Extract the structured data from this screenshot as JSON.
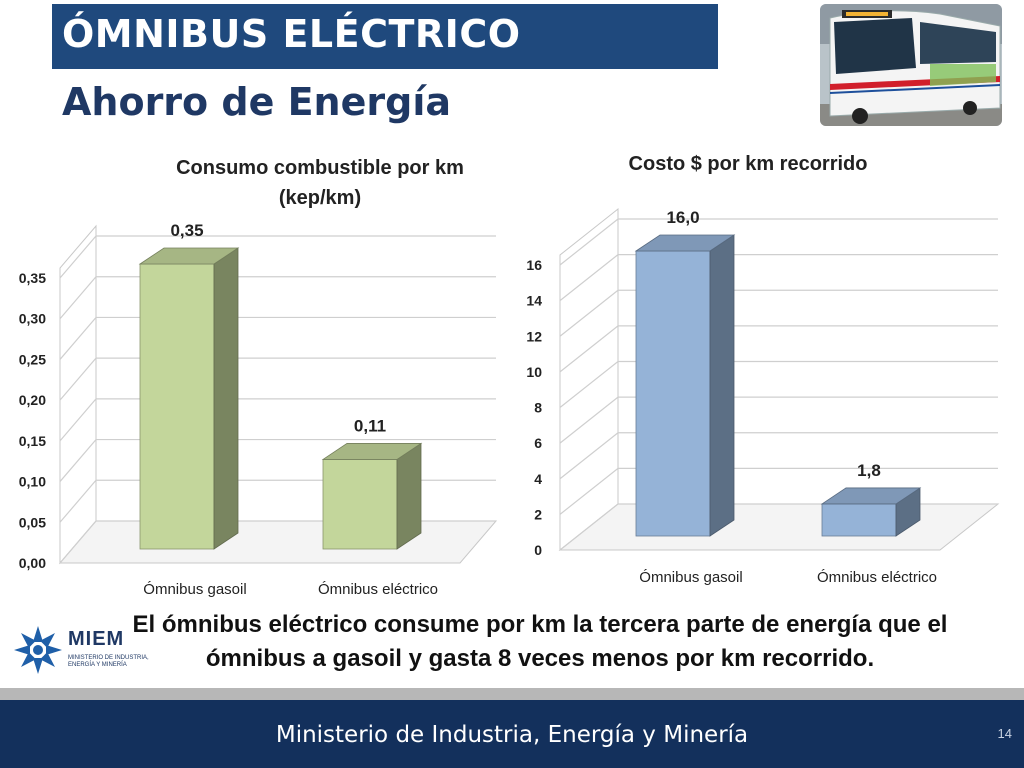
{
  "slide": {
    "title": "ÓMNIBUS ELÉCTRICO",
    "subtitle": "Ahorro de Energía",
    "conclusion_line1": "El ómnibus eléctrico consume por km la tercera parte de energía que el",
    "conclusion_line2": "ómnibus a gasoil y gasta 8 veces menos por km recorrido.",
    "footer": "Ministerio de Industria, Energía y Minería",
    "page_number": "14",
    "logo": {
      "name": "MIEM",
      "subtitle": "Ministerio de Industria, Energía y Minería"
    }
  },
  "chart_data": [
    {
      "type": "bar",
      "title_line1": "Consumo combustible por km",
      "title_line2": "(kep/km)",
      "categories": [
        "Ómnibus gasoil",
        "Ómnibus eléctrico"
      ],
      "values": [
        0.35,
        0.11
      ],
      "data_labels": [
        "0,35",
        "0,11"
      ],
      "ylim": [
        0,
        0.35
      ],
      "yticks": [
        0,
        0.05,
        0.1,
        0.15,
        0.2,
        0.25,
        0.3,
        0.35
      ],
      "ytick_labels": [
        "0,00",
        "0,05",
        "0,10",
        "0,15",
        "0,20",
        "0,25",
        "0,30",
        "0,35"
      ],
      "grid": true,
      "style": "3d-column",
      "color": "#c3d69b",
      "legend": "none"
    },
    {
      "type": "bar",
      "title_line1": "Costo $ por km recorrido",
      "title_line2": "",
      "categories": [
        "Ómnibus gasoil",
        "Ómnibus eléctrico"
      ],
      "values": [
        16.0,
        1.8
      ],
      "data_labels": [
        "16,0",
        "1,8"
      ],
      "ylim": [
        0,
        16
      ],
      "yticks": [
        0,
        2,
        4,
        6,
        8,
        10,
        12,
        14,
        16
      ],
      "ytick_labels": [
        "0",
        "2",
        "4",
        "6",
        "8",
        "10",
        "12",
        "14",
        "16"
      ],
      "grid": true,
      "style": "3d-column",
      "color": "#95b3d7",
      "legend": "none"
    }
  ],
  "icons": {
    "bus": "bus-photo-icon",
    "logo": "miem-star-logo-icon"
  }
}
